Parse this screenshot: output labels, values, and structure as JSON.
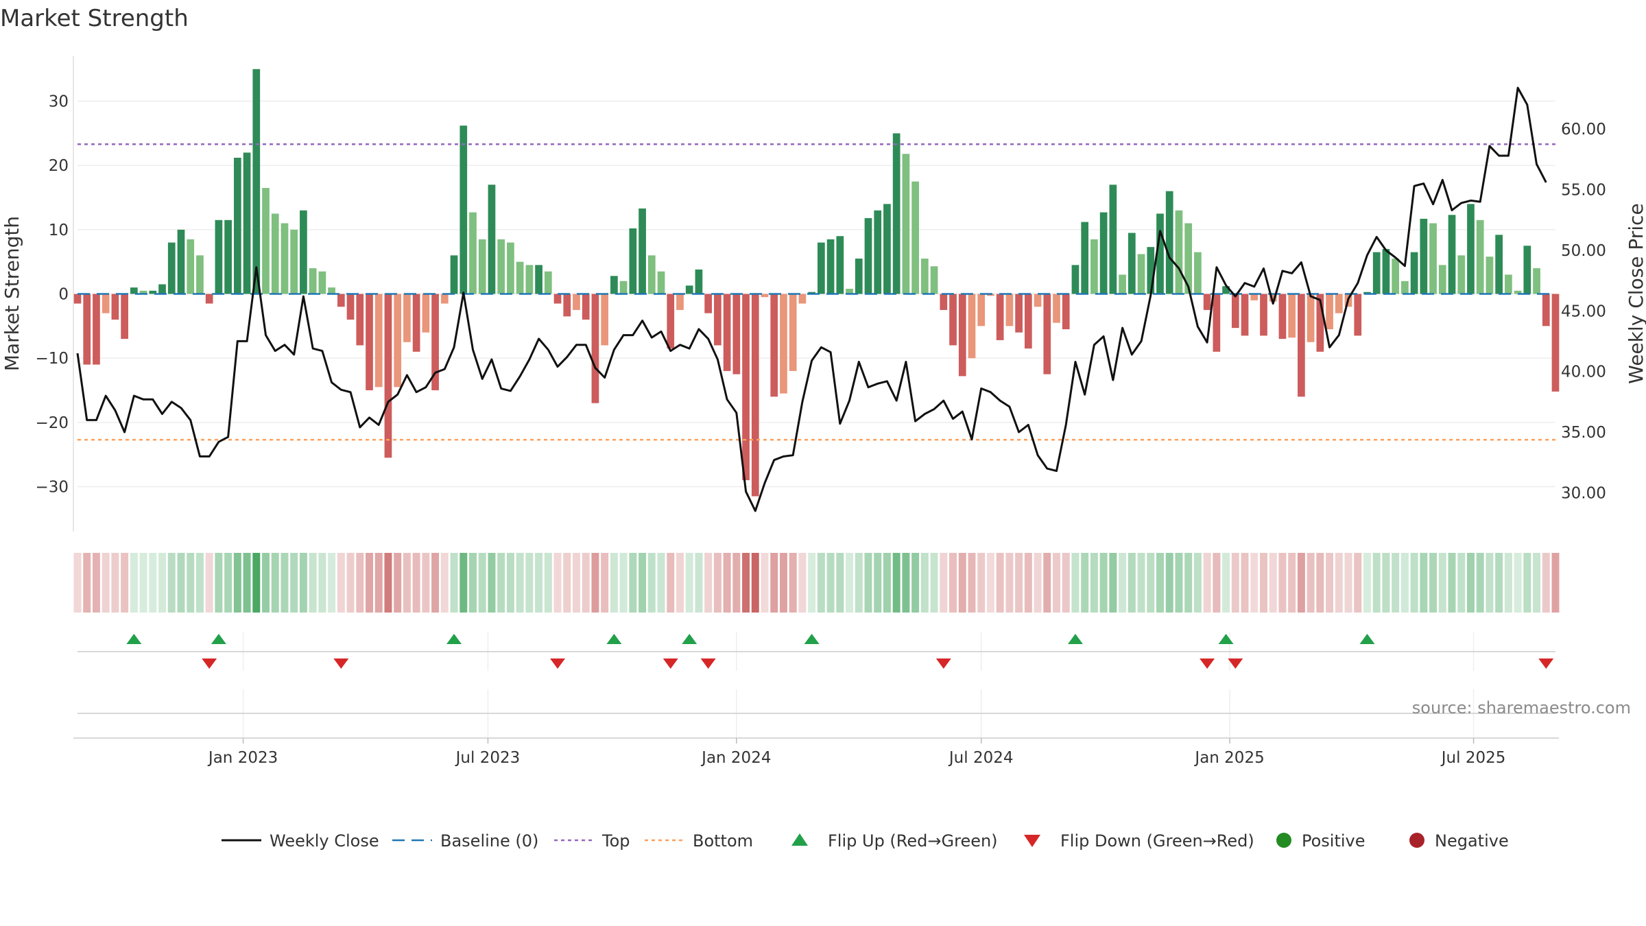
{
  "chart_data": {
    "type": "bar",
    "title": "Market Strength",
    "ylabel_left": "Market Strength",
    "ylabel_right": "Weekly Close Price",
    "source": "source: sharemaestro.com",
    "left_ylim": [
      -37,
      37
    ],
    "left_ticks": [
      "30",
      "20",
      "10",
      "0",
      "−10",
      "−20",
      "−30"
    ],
    "left_tick_values": [
      30,
      20,
      10,
      0,
      -10,
      -20,
      -30
    ],
    "right_ylim": [
      26.8,
      66.0
    ],
    "right_ticks": [
      "60.00",
      "55.00",
      "50.00",
      "45.00",
      "40.00",
      "35.00",
      "30.00"
    ],
    "right_tick_values": [
      60,
      55,
      50,
      45,
      40,
      35,
      30
    ],
    "x_ticks": [
      "Jan 2023",
      "Jul 2023",
      "Jan 2024",
      "Jul 2024",
      "Jan 2025",
      "Jul 2025"
    ],
    "x_tick_weeks": [
      17.6,
      43.6,
      70.0,
      96.0,
      122.4,
      148.3
    ],
    "top_line": 23.3,
    "bottom_line": -22.7,
    "baseline": 0,
    "strength": [
      -1.5,
      -11,
      -11,
      -3,
      -4,
      -7,
      1,
      0.5,
      0.5,
      1.5,
      8,
      10,
      8.5,
      6,
      -1.5,
      11.5,
      11.5,
      21.2,
      22,
      35,
      16.5,
      12.5,
      11,
      10,
      13,
      4,
      3.5,
      1,
      -2,
      -4,
      -8,
      -15,
      -14.5,
      -25.5,
      -14.5,
      -7.5,
      -9,
      -6,
      -15,
      -1.5,
      6,
      26.2,
      12.7,
      8.5,
      17,
      8.5,
      8,
      5,
      4.5,
      4.5,
      3.5,
      -1.5,
      -3.5,
      -2.5,
      -4,
      -17,
      -8,
      2.8,
      2,
      10.2,
      13.3,
      6,
      3.5,
      -8.5,
      -2.5,
      1.3,
      3.8,
      -3,
      -8,
      -12,
      -12.5,
      -29,
      -31.5,
      -0.5,
      -16,
      -15.5,
      -12,
      -1.5,
      0.3,
      8,
      8.5,
      9,
      0.8,
      5.5,
      11.8,
      13,
      14,
      25,
      21.8,
      17.5,
      5.5,
      4.3,
      -2.5,
      -8,
      -12.8,
      -10,
      -5,
      -0.3,
      -7.2,
      -5,
      -6,
      -8.5,
      -2,
      -12.5,
      -4.5,
      -5.5,
      4.5,
      11.2,
      8.5,
      12.7,
      17,
      3,
      9.5,
      6.2,
      7.3,
      12.5,
      16,
      13,
      11,
      6.5,
      -2.5,
      -9,
      1.2,
      -5.3,
      -6.5,
      -1,
      -6.5,
      -1.2,
      -7,
      -6.8,
      -16,
      -7.5,
      -9,
      -5.5,
      -3,
      -2,
      -6.5,
      0.3,
      6.5,
      7,
      5.5,
      2,
      6.5,
      11.7,
      11,
      4.5,
      12.3,
      6,
      14,
      11.5,
      5.8,
      9.2,
      3,
      0.5,
      7.5,
      4,
      -5,
      -15.2
    ],
    "price": [
      41.5,
      36,
      36,
      38,
      36.8,
      35,
      38,
      37.7,
      37.7,
      36.5,
      37.5,
      37,
      36,
      33,
      33,
      34.2,
      34.6,
      42.5,
      42.5,
      48.6,
      43,
      41.7,
      42.2,
      41.4,
      46.2,
      41.9,
      41.7,
      39.1,
      38.5,
      38.3,
      35.4,
      36.2,
      35.6,
      37.5,
      38.1,
      39.7,
      38.3,
      38.7,
      39.9,
      40.2,
      42,
      46.5,
      41.8,
      39.4,
      41,
      38.6,
      38.4,
      39.6,
      41,
      42.7,
      41.8,
      40.4,
      41.2,
      42.2,
      42.2,
      40.3,
      39.5,
      41.8,
      43,
      43,
      44.2,
      42.8,
      43.3,
      41.7,
      42.2,
      41.9,
      43.5,
      42.7,
      41,
      37.7,
      36.6,
      30.1,
      28.5,
      30.8,
      32.7,
      33,
      33.1,
      37.5,
      40.9,
      42,
      41.6,
      35.7,
      37.6,
      40.8,
      38.7,
      39,
      39.2,
      37.6,
      40.8,
      35.9,
      36.5,
      36.9,
      37.6,
      36.1,
      36.7,
      34.4,
      38.6,
      38.3,
      37.6,
      37.1,
      35,
      35.6,
      33.1,
      32,
      31.8,
      35.6,
      40.8,
      38.1,
      42.2,
      42.9,
      39.3,
      43.6,
      41.4,
      42.5,
      46.3,
      51.6,
      49.4,
      48.5,
      47,
      43.7,
      42.4,
      48.6,
      47.1,
      46.2,
      47.3,
      47,
      48.5,
      45.6,
      48.3,
      48.1,
      49,
      46.2,
      45.9,
      42,
      43,
      46,
      47.3,
      49.6,
      51.1,
      50,
      49.4,
      48.7,
      55.3,
      55.5,
      53.8,
      55.8,
      53.3,
      53.9,
      54.1,
      54,
      58.6,
      57.8,
      57.8,
      63.4,
      62,
      57.1,
      55.6
    ],
    "legend": [
      {
        "label": "Weekly Close",
        "kind": "line",
        "color": "#111111"
      },
      {
        "label": "Baseline (0)",
        "kind": "dash",
        "color": "#1f77b4"
      },
      {
        "label": "Top",
        "kind": "dot",
        "color": "#9467bd"
      },
      {
        "label": "Bottom",
        "kind": "dot",
        "color": "#ff9f5a"
      },
      {
        "label": "Flip Up (Red→Green)",
        "kind": "up",
        "color": "#22a04a"
      },
      {
        "label": "Flip Down (Green→Red)",
        "kind": "down",
        "color": "#d62728"
      },
      {
        "label": "Positive",
        "kind": "circle",
        "color": "#228b22"
      },
      {
        "label": "Negative",
        "kind": "circle",
        "color": "#a8222a"
      }
    ],
    "colors": {
      "strong_green": "#2e8b57",
      "light_green": "#7fbf7f",
      "strong_red": "#cd5c5c",
      "light_red": "#e9967a",
      "heat_green": "#3fa35a",
      "heat_red": "#c25050",
      "price_line": "#111111",
      "grid": "#eeeeee"
    }
  }
}
